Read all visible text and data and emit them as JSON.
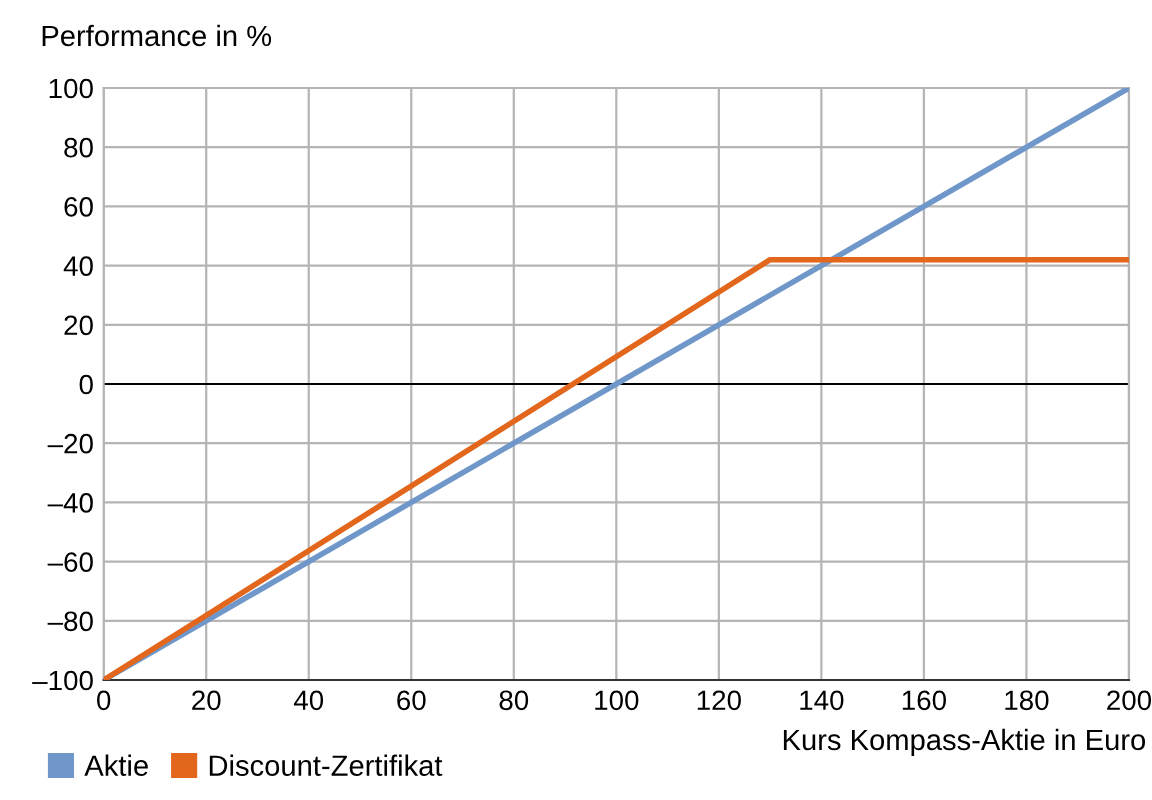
{
  "chart_data": {
    "type": "line",
    "ylabel": "Performance in %",
    "xlabel": "Kurs Kompass-Aktie in Euro",
    "series": [
      {
        "name": "Aktie",
        "color": "#6f97c9",
        "x": [
          0,
          200
        ],
        "values": [
          -100,
          100
        ]
      },
      {
        "name": "Discount-Zertifikat",
        "color": "#e2661b",
        "x": [
          0,
          130,
          200
        ],
        "values": [
          -100,
          42,
          42
        ]
      }
    ],
    "xlim": [
      0,
      200
    ],
    "xticks": [
      0,
      20,
      40,
      60,
      80,
      100,
      120,
      140,
      160,
      180,
      200
    ],
    "ylim": [
      -100,
      100
    ],
    "yticks": [
      {
        "value": -100,
        "label": "–100"
      },
      {
        "value": -80,
        "label": "–80"
      },
      {
        "value": -60,
        "label": "–60"
      },
      {
        "value": -40,
        "label": "–40"
      },
      {
        "value": -20,
        "label": "–20"
      },
      0,
      20,
      40,
      60,
      80,
      100
    ],
    "ref_lines": [
      {
        "axis": "y",
        "value": 0,
        "color": "#000000"
      }
    ],
    "grid": true,
    "legend": "bottom left",
    "marker": "none",
    "line_style": "solid"
  }
}
